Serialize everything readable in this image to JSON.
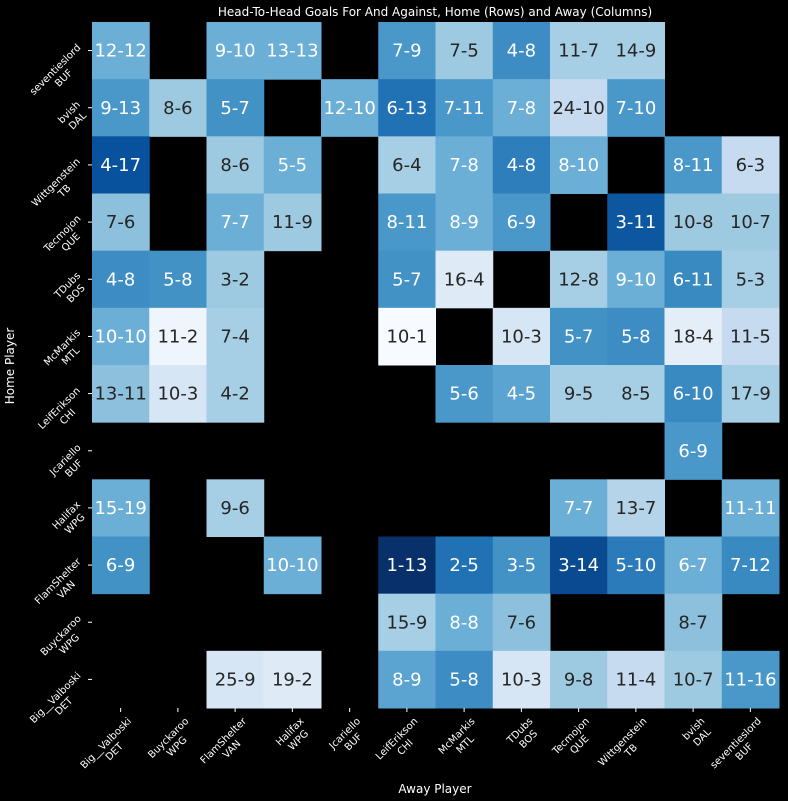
{
  "chart_data": {
    "type": "heatmap",
    "title": "Head-To-Head Goals For And Against, Home (Rows) and Away (Columns)",
    "xlabel": "Away Player",
    "ylabel": "Home Player",
    "x_categories": [
      "Big__Valboski\nDET",
      "Buyckaroo\nWPG",
      "FlamShelter\nVAN",
      "Halifax\nWPG",
      "Jcariello\nBUF",
      "LeifErikson\nCHI",
      "McMarkis\nMTL",
      "TDubs\nBOS",
      "Tecmojon\nQUE",
      "Wittgenstein\nTB",
      "bvish\nDAL",
      "seventieslord\nBUF"
    ],
    "y_categories": [
      "seventieslord\nBUF",
      "bvish\nDAL",
      "Wittgenstein\nTB",
      "Tecmojon\nQUE",
      "TDubs\nBOS",
      "McMarkis\nMTL",
      "LeifErikson\nCHI",
      "Jcariello\nBUF",
      "Halifax\nWPG",
      "FlamShelter\nVAN",
      "Buyckaroo\nWPG",
      "Big__Valboski\nDET"
    ],
    "cells": [
      [
        "12-12",
        null,
        "9-10",
        "13-13",
        null,
        "7-9",
        "7-5",
        "4-8",
        "11-7",
        "14-9",
        null,
        null
      ],
      [
        "9-13",
        "8-6",
        "5-7",
        null,
        "12-10",
        "6-13",
        "7-11",
        "7-8",
        "24-10",
        "7-10",
        null,
        null
      ],
      [
        "4-17",
        null,
        "8-6",
        "5-5",
        null,
        "6-4",
        "7-8",
        "4-8",
        "8-10",
        null,
        "8-11",
        "6-3"
      ],
      [
        "7-6",
        null,
        "7-7",
        "11-9",
        null,
        "8-11",
        "8-9",
        "6-9",
        null,
        "3-11",
        "10-8",
        "10-7"
      ],
      [
        "4-8",
        "5-8",
        "3-2",
        null,
        null,
        "5-7",
        "16-4",
        null,
        "12-8",
        "9-10",
        "6-11",
        "5-3"
      ],
      [
        "10-10",
        "11-2",
        "7-4",
        null,
        null,
        "10-1",
        null,
        "10-3",
        "5-7",
        "5-8",
        "18-4",
        "11-5"
      ],
      [
        "13-11",
        "10-3",
        "4-2",
        null,
        null,
        null,
        "5-6",
        "4-5",
        "9-5",
        "8-5",
        "6-10",
        "17-9"
      ],
      [
        null,
        null,
        null,
        null,
        null,
        null,
        null,
        null,
        null,
        null,
        "6-9",
        null
      ],
      [
        "15-19",
        null,
        "9-6",
        null,
        null,
        null,
        null,
        null,
        "7-7",
        "13-7",
        null,
        "11-11"
      ],
      [
        "6-9",
        null,
        null,
        "10-10",
        null,
        "1-13",
        "2-5",
        "3-5",
        "3-14",
        "5-10",
        "6-7",
        "7-12"
      ],
      [
        null,
        null,
        null,
        null,
        null,
        "15-9",
        "8-8",
        "7-6",
        null,
        null,
        "8-7",
        null
      ],
      [
        null,
        null,
        "25-9",
        "19-2",
        null,
        "8-9",
        "5-8",
        "10-3",
        "9-8",
        "11-4",
        "10-7",
        "11-16"
      ]
    ],
    "colors": [
      [
        "#6baed6",
        null,
        "#6baed6",
        "#6baed6",
        null,
        "#4a98c9",
        "#9ecae1",
        "#3d8dc4",
        "#a6cee4",
        "#a6cee4",
        null,
        null
      ],
      [
        "#4a98c9",
        "#9ecae1",
        "#4292c6",
        null,
        "#6baed6",
        "#2171b5",
        "#4a98c9",
        "#6baed6",
        "#c6dbef",
        "#4a98c9",
        null,
        null
      ],
      [
        "#08519c",
        null,
        "#9ecae1",
        "#6baed6",
        null,
        "#a6cee4",
        "#6baed6",
        "#2e7ebc",
        "#6baed6",
        null,
        "#4a98c9",
        "#c6dbef"
      ],
      [
        "#8cc0dd",
        null,
        "#6baed6",
        "#9ecae1",
        null,
        "#4a98c9",
        "#6baed6",
        "#4a98c9",
        null,
        "#0d57a1",
        "#9ecae1",
        "#9ecae1"
      ],
      [
        "#3d8dc4",
        "#4292c6",
        "#9ecae1",
        null,
        null,
        "#4292c6",
        "#deebf7",
        null,
        "#a6cee4",
        "#6baed6",
        "#3a8ac2",
        "#a6cee4"
      ],
      [
        "#6baed6",
        "#eef5fc",
        "#a6cee4",
        null,
        null,
        "#f7fbff",
        null,
        "#d6e6f4",
        "#4292c6",
        "#3d8dc4",
        "#e3eef9",
        "#c6dbef"
      ],
      [
        "#8cc0dd",
        "#d6e6f4",
        "#a6cee4",
        null,
        null,
        null,
        "#4a98c9",
        "#5ba3d0",
        "#a6cee4",
        "#a6cee4",
        "#3a8ac2",
        "#a6cee4"
      ],
      [
        null,
        null,
        null,
        null,
        null,
        null,
        null,
        null,
        null,
        null,
        "#4a98c9",
        null
      ],
      [
        "#6baed6",
        null,
        "#a6cee4",
        null,
        null,
        null,
        null,
        null,
        "#6baed6",
        "#b5d4e9",
        null,
        "#6baed6"
      ],
      [
        "#4292c6",
        null,
        null,
        "#6baed6",
        null,
        "#08306b",
        "#2171b5",
        "#4292c6",
        "#0a4a90",
        "#2b7bba",
        "#6baed6",
        "#3a8ac2"
      ],
      [
        null,
        null,
        null,
        null,
        null,
        "#a6cee4",
        "#6baed6",
        "#8cc0dd",
        null,
        null,
        "#8cc0dd",
        null
      ],
      [
        null,
        null,
        "#d6e6f4",
        "#deebf7",
        null,
        "#5ba3d0",
        "#3d8dc4",
        "#d6e6f4",
        "#9ecae1",
        "#c6dbef",
        "#9ecae1",
        "#4a98c9"
      ]
    ]
  }
}
